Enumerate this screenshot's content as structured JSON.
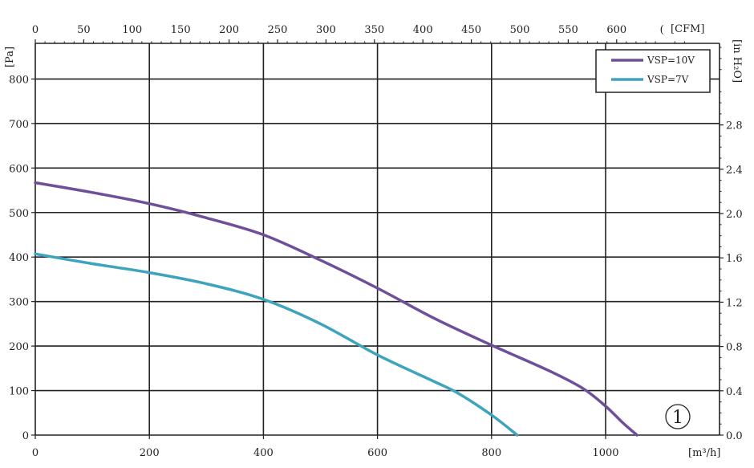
{
  "chart_data": {
    "type": "line",
    "xlabel": "[m³/h]",
    "ylabel": "[Pa]",
    "top_axis_label": "[CFM]",
    "right_axis_label": "[in H₂O]",
    "xlim": [
      0,
      1150
    ],
    "ylim": [
      0,
      880
    ],
    "x_ticks": [
      "0",
      "200",
      "400",
      "600",
      "800",
      "1000"
    ],
    "y_ticks": [
      "0",
      "100",
      "200",
      "300",
      "400",
      "500",
      "600",
      "700",
      "800"
    ],
    "top_ticks": [
      "0",
      "50",
      "100",
      "150",
      "200",
      "250",
      "300",
      "350",
      "400",
      "450",
      "500",
      "550",
      "600",
      "("
    ],
    "right_ticks": [
      "0.0",
      "0.4",
      "0.8",
      "1.2",
      "1.6",
      "2.0",
      "2.4",
      "2.8"
    ],
    "grid": true,
    "legend_position": "top-right",
    "marker_label": "①",
    "series": [
      {
        "name": "VSP=10V",
        "color": "#6e4f99",
        "x": [
          0,
          100,
          200,
          300,
          400,
          500,
          600,
          700,
          800,
          900,
          960,
          1000,
          1030,
          1055
        ],
        "y": [
          567,
          545,
          520,
          488,
          450,
          393,
          330,
          262,
          202,
          145,
          105,
          65,
          28,
          0
        ]
      },
      {
        "name": "VSP=7V",
        "color": "#3ea3bd",
        "x": [
          0,
          100,
          200,
          300,
          400,
          500,
          600,
          700,
          740,
          800,
          845
        ],
        "y": [
          407,
          385,
          365,
          340,
          305,
          250,
          180,
          120,
          95,
          45,
          0
        ]
      }
    ]
  }
}
